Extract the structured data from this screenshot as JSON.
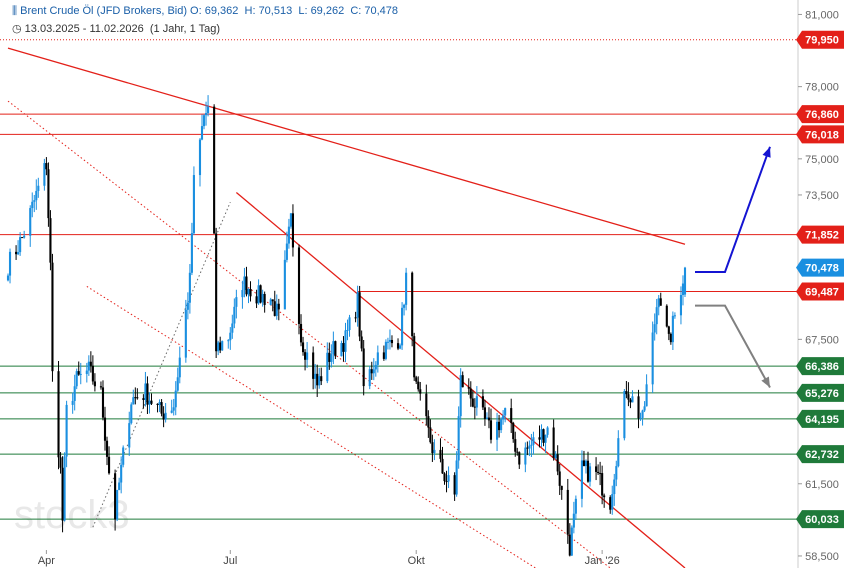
{
  "header": {
    "instrument": "Brent Crude Öl (JFD Brokers, Bid)",
    "ohlc": {
      "O": "69,362",
      "H": "70,513",
      "L": "69,262",
      "C": "70,478"
    },
    "range": "13.03.2025 - 11.02.2026",
    "period": "(1 Jahr, 1 Tag)"
  },
  "watermark": "stock3",
  "colors": {
    "candle_up": "#1a8fe0",
    "candle_down": "#000000",
    "resistance": "#e32019",
    "support": "#1f7a3a",
    "current": "#1a8fe0",
    "bull_arrow": "#1414d2",
    "bear_arrow": "#808080"
  },
  "chart_data": {
    "type": "candlestick",
    "ylim": [
      58000,
      81600
    ],
    "x_ticks": [
      "Apr",
      "Jul",
      "Okt",
      "Jan '26"
    ],
    "y_ticks": [
      "81,000",
      "79,950",
      "78,000",
      "76,860",
      "76,018",
      "75,000",
      "73,500",
      "71,852",
      "70,478",
      "69,487",
      "67,500",
      "66,386",
      "65,276",
      "64,195",
      "62,732",
      "61,500",
      "60,033",
      "58,500"
    ],
    "price_levels": [
      {
        "label": "79,950",
        "value": 79950,
        "kind": "resistance",
        "style": "dotted"
      },
      {
        "label": "76,860",
        "value": 76860,
        "kind": "resistance"
      },
      {
        "label": "76,018",
        "value": 76018,
        "kind": "resistance"
      },
      {
        "label": "71,852",
        "value": 71852,
        "kind": "resistance"
      },
      {
        "label": "70,478",
        "value": 70478,
        "kind": "current"
      },
      {
        "label": "69,487",
        "value": 69487,
        "kind": "resistance",
        "from": "2025-09-02"
      },
      {
        "label": "66,386",
        "value": 66386,
        "kind": "support"
      },
      {
        "label": "65,276",
        "value": 65276,
        "kind": "support"
      },
      {
        "label": "64,195",
        "value": 64195,
        "kind": "support"
      },
      {
        "label": "62,732",
        "value": 62732,
        "kind": "support"
      },
      {
        "label": "60,033",
        "value": 60033,
        "kind": "support"
      }
    ],
    "trendlines": [
      {
        "from": [
          "2025-03-13",
          79600
        ],
        "to": [
          "2026-02-11",
          71450
        ],
        "style": "solid"
      },
      {
        "from": [
          "2025-07-04",
          73600
        ],
        "to": [
          "2026-02-11",
          58000
        ],
        "style": "solid"
      },
      {
        "from": [
          "2025-03-13",
          77400
        ],
        "to": [
          "2026-01-05",
          58000
        ],
        "style": "dotted"
      },
      {
        "from": [
          "2025-04-21",
          69700
        ],
        "to": [
          "2025-11-29",
          58000
        ],
        "style": "dotted"
      },
      {
        "from": [
          "2025-04-24",
          59700
        ],
        "to": [
          "2025-07-01",
          73200
        ],
        "style": "dotted-gray"
      }
    ],
    "series": [
      {
        "name": "Brent",
        "points": [
          [
            "2025-03-13",
            70.6
          ],
          [
            "2025-03-20",
            71.7
          ],
          [
            "2025-03-27",
            73.5
          ],
          [
            "2025-04-01",
            74.8
          ],
          [
            "2025-04-03",
            70.5
          ],
          [
            "2025-04-04",
            66.0
          ],
          [
            "2025-04-08",
            62.0
          ],
          [
            "2025-04-09",
            60.0
          ],
          [
            "2025-04-11",
            64.5
          ],
          [
            "2025-04-16",
            65.8
          ],
          [
            "2025-04-22",
            66.2
          ],
          [
            "2025-04-28",
            65.2
          ],
          [
            "2025-05-02",
            62.0
          ],
          [
            "2025-05-05",
            60.2
          ],
          [
            "2025-05-07",
            61.5
          ],
          [
            "2025-05-13",
            65.0
          ],
          [
            "2025-05-20",
            65.3
          ],
          [
            "2025-05-28",
            64.4
          ],
          [
            "2025-06-03",
            64.8
          ],
          [
            "2025-06-11",
            69.9
          ],
          [
            "2025-06-13",
            74.0
          ],
          [
            "2025-06-18",
            76.8
          ],
          [
            "2025-06-20",
            77.0
          ],
          [
            "2025-06-23",
            71.5
          ],
          [
            "2025-06-24",
            67.1
          ],
          [
            "2025-06-30",
            67.6
          ],
          [
            "2025-07-07",
            69.9
          ],
          [
            "2025-07-15",
            69.3
          ],
          [
            "2025-07-21",
            69.2
          ],
          [
            "2025-07-25",
            68.4
          ],
          [
            "2025-07-31",
            72.5
          ],
          [
            "2025-08-05",
            67.6
          ],
          [
            "2025-08-13",
            65.6
          ],
          [
            "2025-08-20",
            67.0
          ],
          [
            "2025-08-27",
            67.5
          ],
          [
            "2025-09-02",
            69.1
          ],
          [
            "2025-09-05",
            65.5
          ],
          [
            "2025-09-12",
            66.9
          ],
          [
            "2025-09-23",
            67.6
          ],
          [
            "2025-09-26",
            70.1
          ],
          [
            "2025-10-01",
            65.4
          ],
          [
            "2025-10-10",
            62.7
          ],
          [
            "2025-10-20",
            61.0
          ],
          [
            "2025-10-23",
            65.8
          ],
          [
            "2025-10-31",
            64.7
          ],
          [
            "2025-11-07",
            63.6
          ],
          [
            "2025-11-14",
            64.4
          ],
          [
            "2025-11-21",
            62.6
          ],
          [
            "2025-11-28",
            63.2
          ],
          [
            "2025-12-05",
            63.8
          ],
          [
            "2025-12-10",
            62.2
          ],
          [
            "2025-12-16",
            58.9
          ],
          [
            "2025-12-22",
            62.1
          ],
          [
            "2025-12-29",
            61.9
          ],
          [
            "2026-01-05",
            60.8
          ],
          [
            "2026-01-09",
            63.3
          ],
          [
            "2026-01-13",
            65.5
          ],
          [
            "2026-01-21",
            64.1
          ],
          [
            "2026-01-29",
            69.6
          ],
          [
            "2026-02-03",
            67.3
          ],
          [
            "2026-02-11",
            70.478
          ]
        ]
      }
    ],
    "scenarios": [
      {
        "direction": "up",
        "target": 75500
      },
      {
        "direction": "down",
        "target": 65500
      }
    ]
  }
}
